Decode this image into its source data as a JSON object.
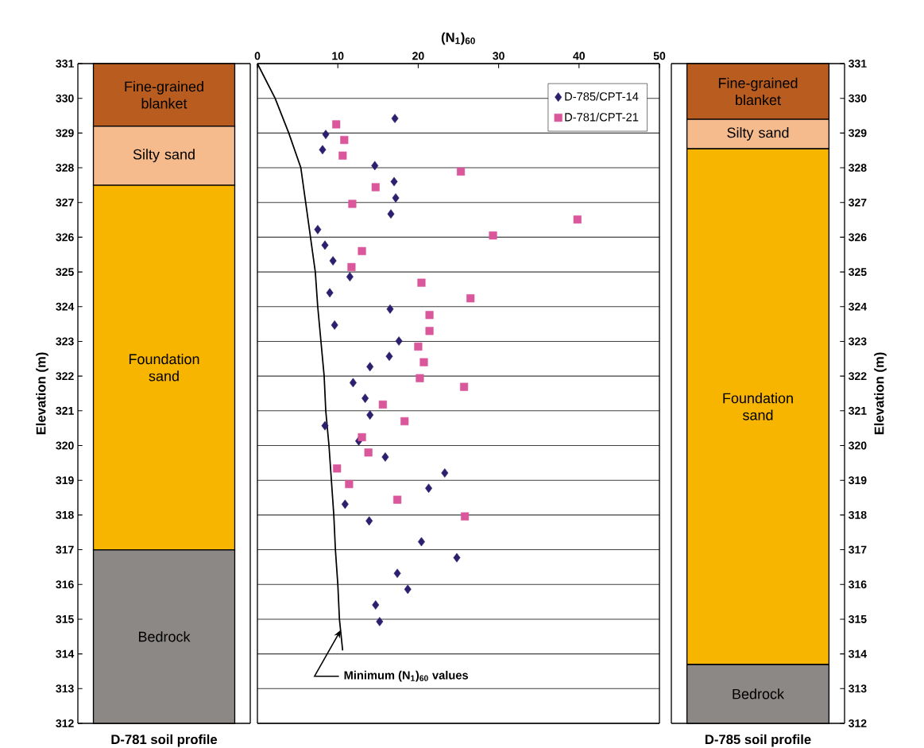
{
  "chart_data": [
    {
      "type": "bar",
      "categories": [
        null
      ],
      "xlabel": "D-781 soil profile",
      "ylabel": "Elevation (m)",
      "ylim": [
        312,
        331
      ],
      "yticks": [
        312,
        313,
        314,
        315,
        316,
        317,
        318,
        319,
        320,
        321,
        322,
        323,
        324,
        325,
        326,
        327,
        328,
        329,
        330,
        331
      ],
      "tick_labels": "y",
      "series": [
        {
          "name": "Bedrock",
          "color": "#8c8886",
          "base": [
            312
          ],
          "values": [
            5
          ]
        },
        {
          "name": "Foundation sand",
          "color": "#f7b500",
          "base": [
            317
          ],
          "values": [
            10.5
          ]
        },
        {
          "name": "Silty sand",
          "color": "#f6bb8d",
          "base": [
            327.5
          ],
          "values": [
            1.7
          ]
        },
        {
          "name": "Fine-grained blanket",
          "color": "#b85c1f",
          "base": [
            329.2
          ],
          "values": [
            1.8
          ]
        }
      ]
    },
    {
      "type": "scatter",
      "xlabel": "(N$_{1}$)$_{60}$",
      "xlim": [
        0,
        50
      ],
      "xticks": [
        0,
        10,
        20,
        30,
        40,
        50
      ],
      "ylim": [
        312,
        331
      ],
      "yticks": [
        {
          "value": 312,
          "label": null
        },
        {
          "value": 313,
          "label": null
        },
        {
          "value": 314,
          "label": null
        },
        {
          "value": 315,
          "label": null
        },
        {
          "value": 316,
          "label": null
        },
        {
          "value": 317,
          "label": null
        },
        {
          "value": 318,
          "label": null
        },
        {
          "value": 319,
          "label": null
        },
        {
          "value": 320,
          "label": null
        },
        {
          "value": 321,
          "label": null
        },
        {
          "value": 322,
          "label": null
        },
        {
          "value": 323,
          "label": null
        },
        {
          "value": 324,
          "label": null
        },
        {
          "value": 325,
          "label": null
        },
        {
          "value": 326,
          "label": null
        },
        {
          "value": 327,
          "label": null
        },
        {
          "value": 328,
          "label": null
        },
        {
          "value": 329,
          "label": null
        },
        {
          "value": 330,
          "label": null
        },
        {
          "value": 331,
          "label": null
        }
      ],
      "grid": "y",
      "legend": "top right",
      "tick_labels": "x",
      "series": [
        {
          "name": "D-785/CPT-14",
          "color": "#2e1f6e",
          "marker": "diamond",
          "x": [
            17.1,
            8.5,
            8.1,
            14.6,
            17.0,
            17.2,
            16.6,
            7.5,
            8.4,
            9.4,
            11.5,
            9.0,
            16.5,
            9.6,
            17.6,
            16.4,
            14.0,
            11.9,
            13.4,
            14.0,
            8.4,
            12.6,
            15.9,
            23.3,
            21.3,
            10.9,
            13.9,
            20.4,
            24.8,
            17.4,
            18.7,
            14.7,
            15.2
          ],
          "values": [
            329.42,
            328.96,
            328.52,
            328.06,
            327.6,
            327.13,
            326.67,
            326.22,
            325.77,
            325.32,
            324.86,
            324.4,
            323.93,
            323.47,
            323.01,
            322.57,
            322.27,
            321.81,
            321.36,
            320.88,
            320.57,
            320.13,
            319.67,
            319.21,
            318.77,
            318.31,
            317.83,
            317.23,
            316.77,
            316.32,
            315.86,
            315.41,
            314.93
          ]
        },
        {
          "name": "D-781/CPT-21",
          "color": "#d9579a",
          "marker": "square",
          "x": [
            9.8,
            10.8,
            10.6,
            25.3,
            14.7,
            11.8,
            39.8,
            29.3,
            13.0,
            11.7,
            20.4,
            26.5,
            21.4,
            21.4,
            20.0,
            20.7,
            20.2,
            25.7,
            15.6,
            18.3,
            13.0,
            13.8,
            9.9,
            11.4,
            17.4,
            25.8
          ],
          "values": [
            329.25,
            328.8,
            328.35,
            327.89,
            327.44,
            326.96,
            326.51,
            326.05,
            325.6,
            325.14,
            324.69,
            324.24,
            323.76,
            323.3,
            322.85,
            322.4,
            321.94,
            321.69,
            321.18,
            320.7,
            320.24,
            319.8,
            319.34,
            318.89,
            318.44,
            317.96
          ]
        },
        {
          "type": "line",
          "color": "#000000",
          "marker": "none",
          "x": [
            0,
            2.2,
            3.9,
            5.4,
            6.0,
            6.6,
            7.2,
            7.5,
            7.9,
            8.3,
            8.5,
            8.9,
            9.2,
            9.5,
            9.7,
            10.0,
            10.2,
            10.6
          ],
          "values": [
            331,
            330,
            329,
            328,
            327,
            326,
            325,
            324,
            323,
            322,
            321,
            320,
            319,
            318,
            317,
            316,
            315,
            314.1
          ]
        }
      ],
      "annotations": [
        {
          "text": "Minimum (N$_{1}$)$_{60}$ values",
          "x": 10.4,
          "y": 314.7
        }
      ]
    },
    {
      "type": "bar",
      "categories": [
        null
      ],
      "xlabel": "D-785 soil profile",
      "ylabel": "Elevation (m)",
      "ylim": [
        312,
        331
      ],
      "yticks": [
        312,
        313,
        314,
        315,
        316,
        317,
        318,
        319,
        320,
        321,
        322,
        323,
        324,
        325,
        326,
        327,
        328,
        329,
        330,
        331
      ],
      "tick_labels": "y",
      "series": [
        {
          "name": "Bedrock",
          "color": "#8c8886",
          "base": [
            312
          ],
          "values": [
            1.7
          ]
        },
        {
          "name": "Foundation sand",
          "color": "#f7b500",
          "base": [
            313.7
          ],
          "values": [
            14.85
          ]
        },
        {
          "name": "Silty sand",
          "color": "#f6bb8d",
          "base": [
            328.55
          ],
          "values": [
            0.85
          ]
        },
        {
          "name": "Fine-grained blanket",
          "color": "#b85c1f",
          "base": [
            329.4
          ],
          "values": [
            1.6
          ]
        }
      ]
    }
  ]
}
